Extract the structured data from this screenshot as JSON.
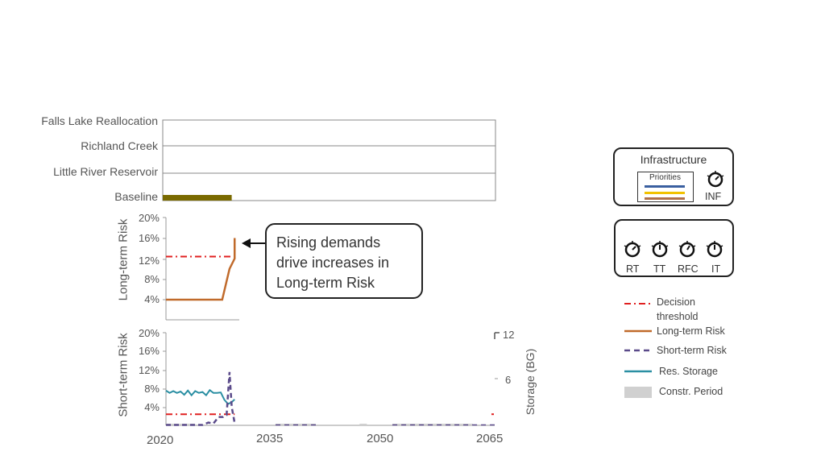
{
  "chart_data": [
    {
      "type": "gantt",
      "lanes": [
        "Falls Lake Reallocation",
        "Richland Creek",
        "Little River Reservoir",
        "Baseline"
      ],
      "bars": [
        {
          "lane": "Baseline",
          "start": 2020,
          "end": 2029
        }
      ],
      "xlim": [
        2020,
        2065
      ],
      "color": "#7a6a00"
    },
    {
      "type": "line",
      "ylabel": "Long-term Risk",
      "yticks": [
        "20%",
        "16%",
        "12%",
        "8%",
        "4%"
      ],
      "ylim": [
        0,
        20
      ],
      "x": [
        2020,
        2027.7,
        2028.7,
        2029.4,
        2029.4
      ],
      "series": [
        {
          "name": "Long-term Risk",
          "values": [
            4,
            4,
            10,
            12,
            16
          ],
          "color": "#c06a2b"
        }
      ],
      "threshold": {
        "name": "Decision threshold",
        "value": 12.4,
        "xend": 2029.4,
        "color": "#e02020"
      }
    },
    {
      "type": "line",
      "ylabel": "Short-term Risk",
      "y2label": "Storage (BG)",
      "yticks": [
        "20%",
        "16%",
        "12%",
        "8%",
        "4%"
      ],
      "y2ticks": [
        "12",
        "6"
      ],
      "ylim": [
        0,
        20
      ],
      "y2lim": [
        0,
        12
      ],
      "xticks": [
        "2020",
        "2035",
        "2050",
        "2065"
      ],
      "xlim": [
        2020,
        2065
      ],
      "threshold": {
        "name": "Decision threshold",
        "value": 2.4,
        "xend": 2029.4,
        "color": "#e02020"
      },
      "storage": {
        "name": "Res. Storage",
        "x": [
          2020,
          2020.5,
          2021,
          2021.5,
          2022,
          2022.5,
          2023,
          2023.5,
          2024,
          2024.5,
          2025,
          2025.5,
          2026,
          2026.5,
          2027,
          2027.5,
          2028,
          2028.5,
          2029,
          2029.4
        ],
        "values": [
          7.5,
          7.0,
          7.4,
          7.0,
          7.3,
          6.6,
          7.5,
          6.5,
          7.4,
          7.0,
          7.2,
          6.5,
          7.6,
          7.0,
          7.0,
          7.1,
          5.5,
          4.6,
          5.0,
          5.6
        ],
        "color": "#2b8fa3"
      },
      "short_term": {
        "name": "Short-term Risk",
        "x": [
          2020,
          2022,
          2025,
          2025.8,
          2026.5,
          2027.2,
          2027.8,
          2028.3,
          2028.7,
          2029,
          2029.4
        ],
        "values": [
          0,
          0,
          0,
          0.6,
          0.4,
          1.8,
          1.8,
          2.2,
          11.5,
          4,
          0.5
        ],
        "color": "#5a4a8a"
      }
    }
  ],
  "callout": {
    "line1": "Rising demands",
    "line2": "drive increases in",
    "line3": "Long-term Risk"
  },
  "panel_infra": {
    "title": "Infrastructure",
    "priorities_label": "Priorities",
    "priority_colors": [
      "#3a5fa0",
      "#f2c200",
      "#b0704a"
    ],
    "dial_label": "INF"
  },
  "panel_dials": {
    "labels": [
      "RT",
      "TT",
      "RFC",
      "IT"
    ]
  },
  "legend": [
    {
      "label_line1": "Decision",
      "label_line2": "threshold",
      "color": "#e02020",
      "style": "dashdot"
    },
    {
      "label_line1": "Long-term Risk",
      "color": "#c06a2b",
      "style": "solid"
    },
    {
      "label_line1": "Short-term Risk",
      "color": "#5a4a8a",
      "style": "dashed"
    },
    {
      "label_line1": "Res. Storage",
      "color": "#2b8fa3",
      "style": "solid"
    },
    {
      "label_line1": "Constr. Period",
      "color": "#d0d0d0",
      "style": "box"
    }
  ]
}
